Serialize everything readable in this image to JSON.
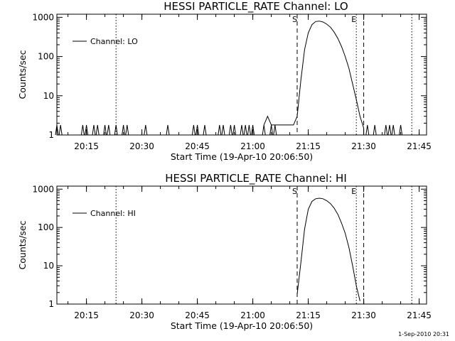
{
  "chart_data": [
    {
      "type": "line",
      "title": "HESSI PARTICLE_RATE Channel: LO",
      "xlabel": "Start Time (19-Apr-10 20:06:50)",
      "ylabel": "Counts/sec",
      "yscale": "log",
      "ylim": [
        1,
        1200
      ],
      "xlim": [
        "20:07",
        "21:47"
      ],
      "x_ticks": [
        "20:15",
        "20:30",
        "20:45",
        "21:00",
        "21:15",
        "21:30",
        "21:45"
      ],
      "y_ticks": [
        "1",
        "10",
        "100",
        "1000"
      ],
      "legend": {
        "label": "Channel: LO",
        "position": "top-left"
      },
      "markers": [
        {
          "time": "20:23",
          "style": "dotted",
          "label": ""
        },
        {
          "time": "21:12",
          "style": "dashed",
          "label": "S"
        },
        {
          "time": "21:28",
          "style": "dotted",
          "label": "E"
        },
        {
          "time": "21:30",
          "style": "dashed",
          "label": ""
        },
        {
          "time": "21:43",
          "style": "dotted",
          "label": ""
        }
      ],
      "background_spikes": [
        "20:07",
        "20:08",
        "20:14",
        "20:15",
        "20:17",
        "20:18",
        "20:20",
        "20:21",
        "20:23",
        "20:25",
        "20:26",
        "20:31",
        "20:37",
        "20:44",
        "20:45",
        "20:47",
        "20:51",
        "20:52",
        "20:54",
        "20:55",
        "20:57",
        "20:58",
        "20:59",
        "21:00",
        "21:03",
        "21:05",
        "21:06",
        "21:31",
        "21:33",
        "21:36",
        "21:37",
        "21:38",
        "21:40"
      ],
      "series": [
        {
          "name": "Channel: LO",
          "points": [
            [
              "21:03",
              1.8
            ],
            [
              "21:04",
              3
            ],
            [
              "21:05",
              1.8
            ],
            [
              "21:11",
              1.8
            ],
            [
              "21:12",
              3
            ],
            [
              "21:13",
              25
            ],
            [
              "21:14",
              150
            ],
            [
              "21:15",
              400
            ],
            [
              "21:16",
              650
            ],
            [
              "21:17",
              780
            ],
            [
              "21:18",
              800
            ],
            [
              "21:19",
              760
            ],
            [
              "21:20",
              670
            ],
            [
              "21:21",
              560
            ],
            [
              "21:22",
              420
            ],
            [
              "21:23",
              290
            ],
            [
              "21:24",
              180
            ],
            [
              "21:25",
              100
            ],
            [
              "21:26",
              50
            ],
            [
              "21:27",
              20
            ],
            [
              "21:28",
              8
            ],
            [
              "21:29",
              3
            ],
            [
              "21:30",
              1.5
            ]
          ]
        }
      ]
    },
    {
      "type": "line",
      "title": "HESSI PARTICLE_RATE Channel: HI",
      "xlabel": "Start Time (19-Apr-10 20:06:50)",
      "ylabel": "Counts/sec",
      "yscale": "log",
      "ylim": [
        1,
        1200
      ],
      "xlim": [
        "20:07",
        "21:47"
      ],
      "x_ticks": [
        "20:15",
        "20:30",
        "20:45",
        "21:00",
        "21:15",
        "21:30",
        "21:45"
      ],
      "y_ticks": [
        "1",
        "10",
        "100",
        "1000"
      ],
      "legend": {
        "label": "Channel: HI",
        "position": "top-left"
      },
      "markers": [
        {
          "time": "20:23",
          "style": "dotted",
          "label": ""
        },
        {
          "time": "21:12",
          "style": "dashed",
          "label": "S"
        },
        {
          "time": "21:28",
          "style": "dotted",
          "label": "E"
        },
        {
          "time": "21:30",
          "style": "dashed",
          "label": ""
        },
        {
          "time": "21:43",
          "style": "dotted",
          "label": ""
        }
      ],
      "series": [
        {
          "name": "Channel: HI",
          "points": [
            [
              "21:12",
              1.8
            ],
            [
              "21:13",
              12
            ],
            [
              "21:14",
              90
            ],
            [
              "21:15",
              300
            ],
            [
              "21:16",
              480
            ],
            [
              "21:17",
              560
            ],
            [
              "21:18",
              580
            ],
            [
              "21:19",
              560
            ],
            [
              "21:20",
              500
            ],
            [
              "21:21",
              420
            ],
            [
              "21:22",
              320
            ],
            [
              "21:23",
              220
            ],
            [
              "21:24",
              130
            ],
            [
              "21:25",
              70
            ],
            [
              "21:26",
              30
            ],
            [
              "21:27",
              10
            ],
            [
              "21:28",
              3
            ],
            [
              "21:29",
              1.2
            ]
          ]
        }
      ]
    }
  ],
  "footer": {
    "stamp": "1-Sep-2010 20:31"
  }
}
